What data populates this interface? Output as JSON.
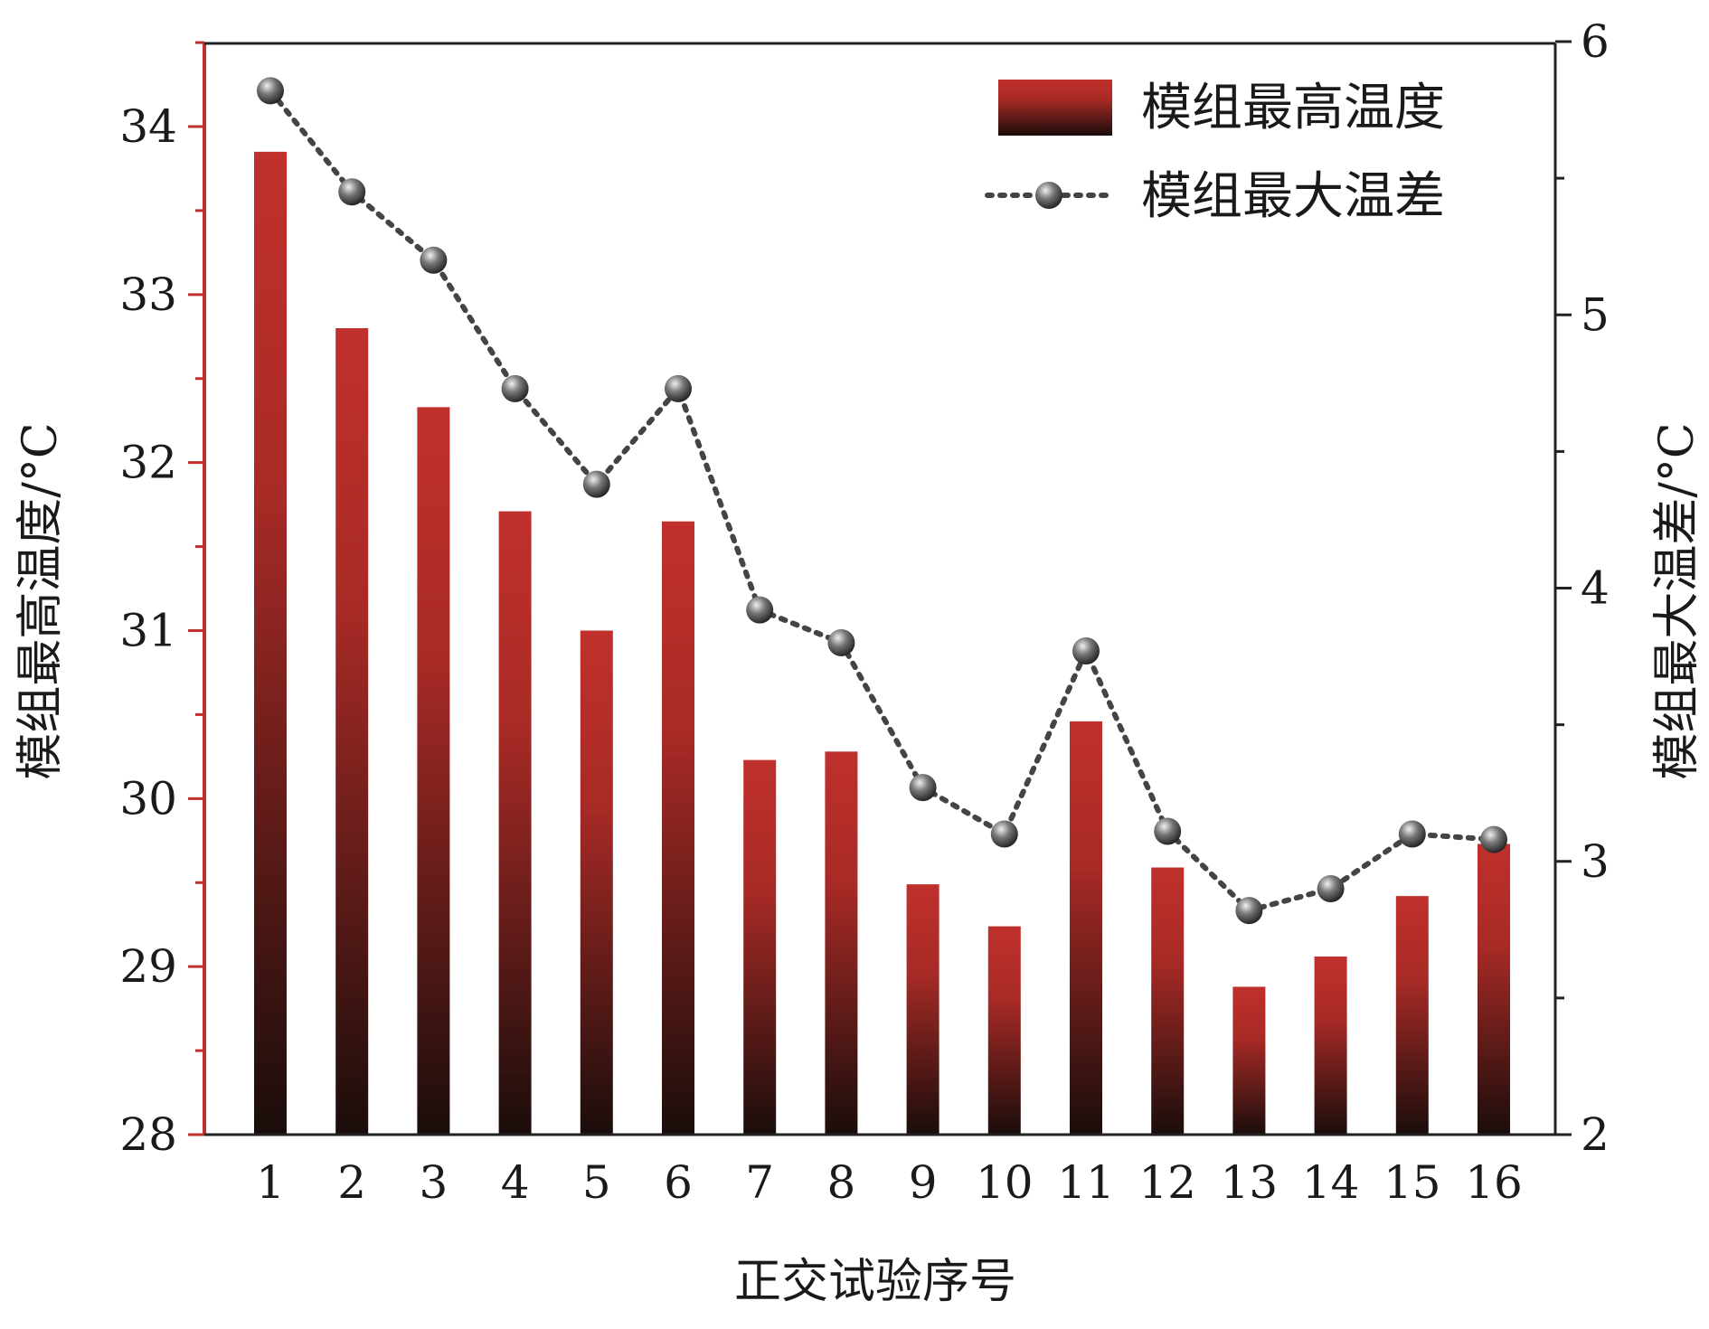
{
  "chart_data": {
    "type": "bar",
    "categories": [
      "1",
      "2",
      "3",
      "4",
      "5",
      "6",
      "7",
      "8",
      "9",
      "10",
      "11",
      "12",
      "13",
      "14",
      "15",
      "16"
    ],
    "series": [
      {
        "name": "模组最高温度",
        "axis": "left",
        "type": "bar",
        "values": [
          33.85,
          32.8,
          32.33,
          31.71,
          31.0,
          31.65,
          30.23,
          30.28,
          29.49,
          29.24,
          30.46,
          29.59,
          28.88,
          29.06,
          29.42,
          29.73
        ]
      },
      {
        "name": "模组最大温差",
        "axis": "right",
        "type": "line",
        "values": [
          5.82,
          5.45,
          5.2,
          4.73,
          4.38,
          4.73,
          3.92,
          3.8,
          3.27,
          3.1,
          3.77,
          3.11,
          2.82,
          2.9,
          3.1,
          3.08
        ]
      }
    ],
    "xlabel": "正交试验序号",
    "ylabel_left": "模组最高温度/°C",
    "ylabel_right": "模组最大温差/°C",
    "ylim_left": [
      28,
      34.5
    ],
    "yticks_left": [
      "28",
      "29",
      "30",
      "31",
      "32",
      "33",
      "34"
    ],
    "ylim_right": [
      2,
      6
    ],
    "yticks_right": [
      "2",
      "3",
      "4",
      "5",
      "6"
    ],
    "grid": false,
    "legend_position": "top-right",
    "colors": {
      "bar_top": "#c0302c",
      "bar_bottom": "#1a0d0b",
      "left_axis": "#c0302c",
      "right_axis": "#222222",
      "line": "#444444",
      "marker": "#333333"
    }
  }
}
